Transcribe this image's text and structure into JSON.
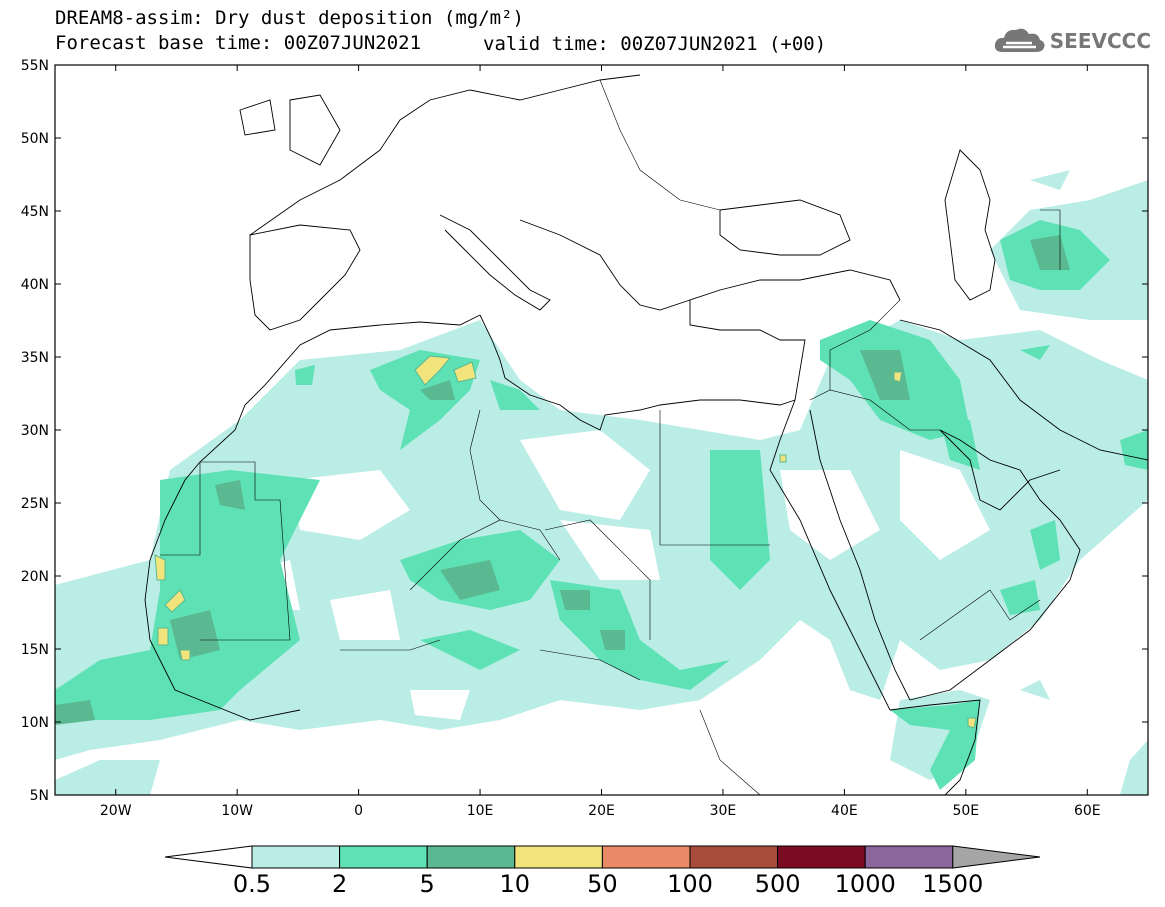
{
  "title": {
    "line1": "DREAM8-assim: Dry dust deposition (mg/m²)",
    "line2a": "Forecast base time: 00Z07JUN2021",
    "line2b": "valid time: 00Z07JUN2021 (+00)"
  },
  "logo": {
    "text": "SEEVCCC",
    "icon": "cloud-icon",
    "color": "#777777"
  },
  "map": {
    "lon_range": [
      -25,
      65
    ],
    "lat_range": [
      5,
      55
    ],
    "lat_labels": [
      "55N",
      "50N",
      "45N",
      "40N",
      "35N",
      "30N",
      "25N",
      "20N",
      "15N",
      "10N",
      "5N"
    ],
    "lon_labels": [
      "20W",
      "10W",
      "0",
      "10E",
      "20E",
      "30E",
      "40E",
      "50E",
      "60E"
    ]
  },
  "legend": {
    "levels": [
      "0.5",
      "2",
      "5",
      "10",
      "50",
      "100",
      "500",
      "1000",
      "1500"
    ],
    "colors": [
      "#ffffff",
      "#b9ede6",
      "#5ee1b4",
      "#5ab991",
      "#f1e47c",
      "#e88a66",
      "#a94c3b",
      "#7b0a23",
      "#8c679e",
      "#a6a6a6"
    ]
  }
}
